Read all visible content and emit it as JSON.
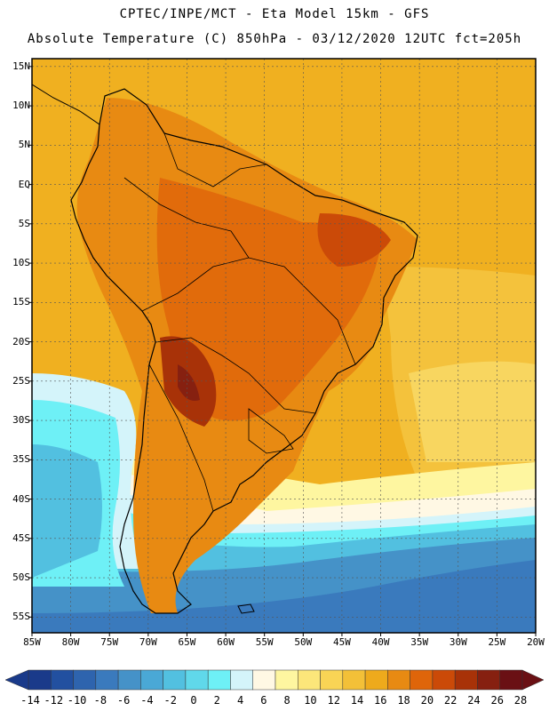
{
  "title": {
    "line1": "CPTEC/INPE/MCT -  Eta Model 15km - GFS",
    "line2": "Absolute Temperature (C) 850hPa - 03/12/2020 12UTC fct=205h"
  },
  "map": {
    "lat_labels": [
      "15N",
      "10N",
      "5N",
      "EQ",
      "5S",
      "10S",
      "15S",
      "20S",
      "25S",
      "30S",
      "35S",
      "40S",
      "45S",
      "50S",
      "55S"
    ],
    "lon_labels": [
      "85W",
      "80W",
      "75W",
      "70W",
      "65W",
      "60W",
      "55W",
      "50W",
      "45W",
      "40W",
      "35W",
      "30W",
      "25W",
      "20W"
    ],
    "lon_range_deg": [
      -85,
      -20
    ],
    "lat_range_deg": [
      -57,
      16
    ]
  },
  "colorbar": {
    "tick_labels": [
      "-14",
      "-12",
      "-10",
      "-8",
      "-6",
      "-4",
      "-2",
      "0",
      "2",
      "4",
      "6",
      "8",
      "10",
      "12",
      "14",
      "16",
      "18",
      "20",
      "22",
      "24",
      "26",
      "28"
    ],
    "colors": [
      "#1a3a8a",
      "#2250a0",
      "#2e64ae",
      "#3a7abd",
      "#4592c8",
      "#4aa8d6",
      "#52c0e0",
      "#60d8ea",
      "#6ef0f6",
      "#d4f4fa",
      "#fff8e4",
      "#fef6a0",
      "#fce67a",
      "#f9d455",
      "#f3c038",
      "#eeaa1c",
      "#e88a12",
      "#df650a",
      "#cb4a08",
      "#a83208",
      "#862010",
      "#6a1014"
    ]
  }
}
